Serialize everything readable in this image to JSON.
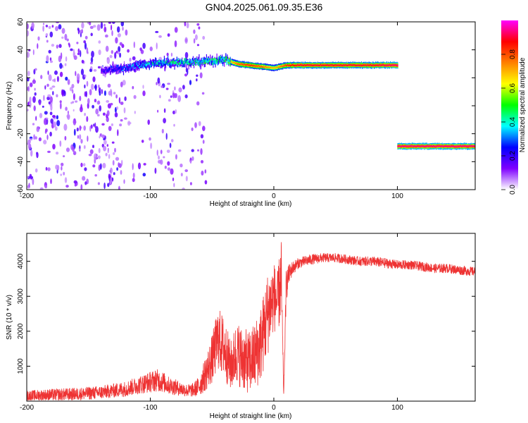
{
  "figure": {
    "title": "GN04.2025.061.09.35.E36"
  },
  "chart_data": [
    {
      "type": "heatmap",
      "xlabel": "Height of straight line (km)",
      "ylabel": "Frequency (Hz)",
      "xlim": [
        -200,
        163
      ],
      "ylim": [
        -60,
        60
      ],
      "x_ticks": [
        -200,
        -100,
        0,
        100
      ],
      "y_ticks": [
        -60,
        -40,
        -20,
        0,
        20,
        40,
        60
      ],
      "colorbar": {
        "label": "Normalized spectral amplitude",
        "range": [
          0,
          1
        ],
        "ticks": [
          0.0,
          0.2,
          0.4,
          0.6,
          0.8
        ],
        "colormap": [
          "#ffffff",
          "#7f00ff",
          "#0000ff",
          "#00ffff",
          "#00ff00",
          "#ffff00",
          "#ff8000",
          "#ff0000",
          "#ff00ff"
        ]
      },
      "features": [
        {
          "name": "dominant ridge",
          "x": [
            -140,
            -120,
            -100,
            -80,
            -60,
            -40,
            -30,
            -20,
            -10,
            0,
            10,
            20,
            40,
            60,
            80,
            100
          ],
          "y": [
            25,
            27,
            30,
            31,
            31,
            33,
            30,
            29,
            28,
            27,
            29,
            29,
            29,
            29,
            29,
            29
          ],
          "amplitude": [
            0.25,
            0.35,
            0.45,
            0.5,
            0.5,
            0.55,
            0.8,
            0.85,
            0.8,
            0.7,
            0.85,
            0.9,
            0.9,
            0.9,
            0.9,
            0.95
          ]
        },
        {
          "name": "aliased line",
          "x": [
            100,
            163
          ],
          "y": [
            -29,
            -29
          ],
          "amplitude": [
            0.95,
            0.95
          ]
        }
      ],
      "grid": false
    },
    {
      "type": "line",
      "xlabel": "Height of straight line (km)",
      "ylabel": "SNR (10 * v/v)",
      "xlim": [
        -200,
        163
      ],
      "ylim": [
        0,
        4800
      ],
      "x_ticks": [
        -200,
        -100,
        0,
        100
      ],
      "y_ticks": [
        1000,
        2000,
        3000,
        4000
      ],
      "color": "#ee3333",
      "series": [
        {
          "x": [
            -200,
            -180,
            -160,
            -140,
            -130,
            -120,
            -110,
            -100,
            -95,
            -90,
            -85,
            -80,
            -75,
            -70,
            -65,
            -60,
            -55,
            -50,
            -45,
            -40,
            -35,
            -30,
            -25,
            -20,
            -15,
            -10,
            -5,
            0,
            3,
            6,
            8,
            10,
            12,
            15,
            20,
            25,
            30,
            40,
            50,
            60,
            70,
            80,
            90,
            100,
            110,
            120,
            130,
            140,
            150,
            163
          ],
          "values": [
            150,
            180,
            200,
            250,
            300,
            350,
            450,
            550,
            600,
            550,
            450,
            400,
            350,
            300,
            320,
            450,
            800,
            1200,
            1800,
            1500,
            1000,
            1400,
            1200,
            1100,
            1300,
            1700,
            2500,
            3000,
            2800,
            3500,
            150,
            3300,
            3600,
            3800,
            3950,
            4000,
            4050,
            4100,
            4100,
            4050,
            4000,
            4000,
            3950,
            3900,
            3900,
            3850,
            3800,
            3800,
            3750,
            3700
          ],
          "noise": [
            150,
            170,
            180,
            190,
            200,
            220,
            250,
            300,
            320,
            300,
            250,
            230,
            200,
            180,
            200,
            300,
            500,
            700,
            900,
            900,
            700,
            900,
            900,
            900,
            1000,
            1100,
            1200,
            1000,
            900,
            1200,
            50,
            500,
            300,
            200,
            150,
            150,
            150,
            130,
            130,
            130,
            130,
            140,
            140,
            130,
            130,
            130,
            130,
            130,
            130,
            130
          ]
        }
      ],
      "grid": false
    }
  ]
}
